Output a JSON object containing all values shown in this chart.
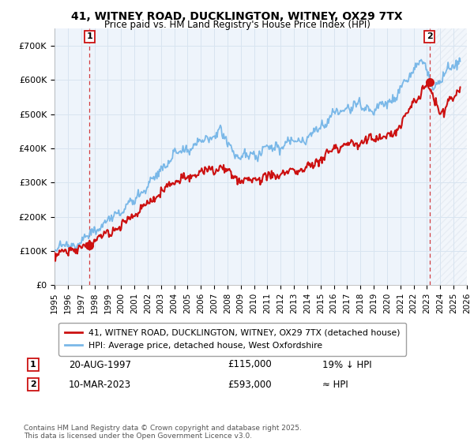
{
  "title_line1": "41, WITNEY ROAD, DUCKLINGTON, WITNEY, OX29 7TX",
  "title_line2": "Price paid vs. HM Land Registry's House Price Index (HPI)",
  "ylim": [
    0,
    750000
  ],
  "yticks": [
    0,
    100000,
    200000,
    300000,
    400000,
    500000,
    600000,
    700000
  ],
  "ytick_labels": [
    "£0",
    "£100K",
    "£200K",
    "£300K",
    "£400K",
    "£500K",
    "£600K",
    "£700K"
  ],
  "hpi_color": "#7ab8e8",
  "price_color": "#cc1111",
  "marker_color": "#cc1111",
  "grid_color": "#d8e4f0",
  "bg_color": "#eef4fb",
  "hatch_color": "#d0d8e4",
  "transaction1_date": "20-AUG-1997",
  "transaction1_price": "£115,000",
  "transaction1_note": "19% ↓ HPI",
  "transaction1_year": 1997.64,
  "transaction1_value": 115000,
  "transaction2_date": "10-MAR-2023",
  "transaction2_price": "£593,000",
  "transaction2_note": "≈ HPI",
  "transaction2_year": 2023.19,
  "transaction2_value": 593000,
  "legend_label1": "41, WITNEY ROAD, DUCKLINGTON, WITNEY, OX29 7TX (detached house)",
  "legend_label2": "HPI: Average price, detached house, West Oxfordshire",
  "footer": "Contains HM Land Registry data © Crown copyright and database right 2025.\nThis data is licensed under the Open Government Licence v3.0.",
  "xmin": 1995,
  "xmax": 2026,
  "hatch_start": 2023.5
}
